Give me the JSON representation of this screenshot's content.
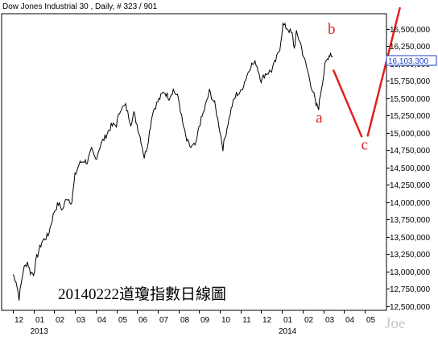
{
  "chart_title": "Dow Jones Industrial 30 , Daily, # 323 / 901",
  "caption": "20140222道瓊指數日線圖",
  "watermark": "Joe",
  "last_price_label": "16,103.300",
  "colors": {
    "price": "#000000",
    "projection": "#e02020",
    "wave_label": "#e02020",
    "price_box_text": "#1a3fd0",
    "price_box_border": "#1a3fd0",
    "frame": "#000000",
    "watermark": "#c8c8c8"
  },
  "chart_data": {
    "type": "line",
    "title": "Dow Jones Industrial 30 , Daily, # 323 / 901",
    "xlabel": "",
    "ylabel": "",
    "ylim": [
      12440,
      16720
    ],
    "grid": false,
    "legend": "none",
    "y_ticks": [
      12500,
      12750,
      13000,
      13250,
      13500,
      13750,
      14000,
      14250,
      14500,
      14750,
      15000,
      15250,
      15500,
      15750,
      16000,
      16250,
      16500
    ],
    "y_tick_labels": [
      "12,500,000",
      "12,750,000",
      "13,000,000",
      "13,250,000",
      "13,500,000",
      "13,750,000",
      "14,000,000",
      "14,250,000",
      "14,500,000",
      "14,750,000",
      "15,000,000",
      "15,250,000",
      "15,500,000",
      "15,750,000",
      "16,000,000",
      "16,250,000",
      "16,500,000"
    ],
    "x_month_labels": [
      "12",
      "01",
      "02",
      "03",
      "04",
      "05",
      "06",
      "07",
      "08",
      "09",
      "10",
      "11",
      "12",
      "01",
      "02",
      "03",
      "04",
      "05"
    ],
    "x_year_labels": [
      {
        "label": "2013",
        "month_index": 1
      },
      {
        "label": "2014",
        "month_index": 13
      }
    ],
    "series": [
      {
        "monthly_points": [
          [
            0.0,
            12960
          ],
          [
            0.15,
            12870
          ],
          [
            0.3,
            12620
          ],
          [
            0.5,
            13020
          ],
          [
            0.7,
            13140
          ],
          [
            0.85,
            12990
          ],
          [
            1.0,
            12970
          ],
          [
            1.15,
            13200
          ],
          [
            1.4,
            13430
          ],
          [
            1.7,
            13520
          ],
          [
            2.0,
            13870
          ],
          [
            2.2,
            13980
          ],
          [
            2.4,
            13890
          ],
          [
            2.6,
            14070
          ],
          [
            2.85,
            14000
          ],
          [
            3.0,
            14380
          ],
          [
            3.2,
            14550
          ],
          [
            3.4,
            14600
          ],
          [
            3.6,
            14580
          ],
          [
            3.8,
            14750
          ],
          [
            4.0,
            14620
          ],
          [
            4.25,
            14840
          ],
          [
            4.5,
            14960
          ],
          [
            4.75,
            15100
          ],
          [
            5.0,
            15120
          ],
          [
            5.2,
            15350
          ],
          [
            5.45,
            15390
          ],
          [
            5.7,
            15140
          ],
          [
            5.85,
            15280
          ],
          [
            6.0,
            15120
          ],
          [
            6.2,
            14880
          ],
          [
            6.35,
            14650
          ],
          [
            6.5,
            14820
          ],
          [
            6.75,
            15300
          ],
          [
            7.0,
            15450
          ],
          [
            7.3,
            15600
          ],
          [
            7.55,
            15510
          ],
          [
            7.75,
            15620
          ],
          [
            8.0,
            15500
          ],
          [
            8.2,
            15150
          ],
          [
            8.4,
            14890
          ],
          [
            8.6,
            14790
          ],
          [
            8.85,
            14830
          ],
          [
            9.0,
            15100
          ],
          [
            9.25,
            15330
          ],
          [
            9.5,
            15600
          ],
          [
            9.75,
            15420
          ],
          [
            9.95,
            15130
          ],
          [
            10.15,
            14780
          ],
          [
            10.4,
            15150
          ],
          [
            10.6,
            15400
          ],
          [
            10.8,
            15560
          ],
          [
            11.0,
            15580
          ],
          [
            11.25,
            15780
          ],
          [
            11.5,
            15980
          ],
          [
            11.75,
            16010
          ],
          [
            12.0,
            15760
          ],
          [
            12.2,
            15850
          ],
          [
            12.5,
            15900
          ],
          [
            12.7,
            16040
          ],
          [
            12.9,
            16220
          ],
          [
            13.05,
            16560
          ],
          [
            13.3,
            16500
          ],
          [
            13.5,
            16420
          ],
          [
            13.6,
            16220
          ],
          [
            13.7,
            16440
          ],
          [
            13.9,
            16300
          ],
          [
            14.05,
            16100
          ],
          [
            14.25,
            15890
          ],
          [
            14.4,
            15700
          ],
          [
            14.55,
            15550
          ],
          [
            14.65,
            15400
          ],
          [
            14.78,
            15370
          ],
          [
            14.9,
            15630
          ],
          [
            15.0,
            15800
          ],
          [
            15.1,
            16000
          ],
          [
            15.25,
            16100
          ],
          [
            15.35,
            16150
          ],
          [
            15.45,
            16103
          ]
        ]
      }
    ],
    "projection_legs": [
      [
        [
          15.5,
          15900
        ],
        [
          16.85,
          14950
        ]
      ],
      [
        [
          17.15,
          14960
        ],
        [
          18.7,
          16800
        ]
      ]
    ],
    "wave_labels": [
      {
        "text": "b",
        "month_pos": 15.4,
        "value": 16430
      },
      {
        "text": "a",
        "month_pos": 14.8,
        "value": 15150
      },
      {
        "text": "c",
        "month_pos": 17.0,
        "value": 14760
      }
    ],
    "last_value": 16103.3
  }
}
